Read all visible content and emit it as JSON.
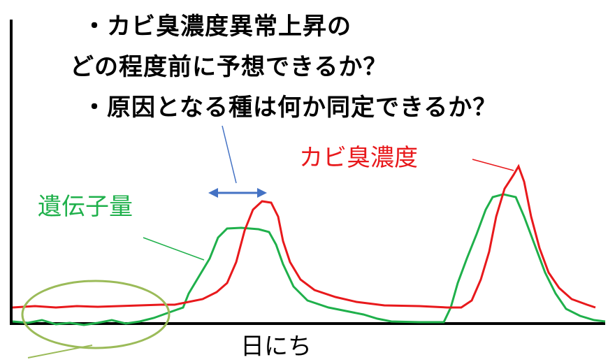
{
  "questions": {
    "q1": "・カビ臭濃度異常上昇の",
    "q2": "どの程度前に予想できるか？",
    "q3": "・原因となる種は何か同定できるか？"
  },
  "labels": {
    "odor": "カビ臭濃度",
    "gene": "遺伝子量",
    "x_axis": "日にち"
  },
  "colors": {
    "odor": "#e8191c",
    "gene": "#1fb04b",
    "arrow": "#4472c4",
    "ellipse": "#9bbb59",
    "axis": "#000000"
  }
}
